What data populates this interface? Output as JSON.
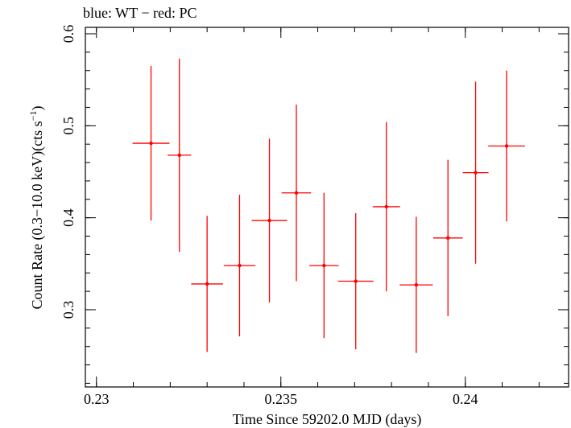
{
  "header": {
    "legend_text": "blue: WT − red: PC"
  },
  "chart_data": {
    "type": "scatter",
    "title": "",
    "xlabel": "Time Since 59202.0 MJD (days)",
    "ylabel_main": "Count Rate (0.3−10.0 keV)(cts s",
    "ylabel_sup": "−1",
    "ylabel_close": ")",
    "xlim": [
      0.2297,
      0.2428
    ],
    "ylim": [
      0.216,
      0.607
    ],
    "x_ticks": [
      0.23,
      0.235,
      0.24
    ],
    "x_tick_labels": [
      "0.23",
      "0.235",
      "0.24"
    ],
    "y_ticks": [
      0.3,
      0.4,
      0.5,
      0.6
    ],
    "y_tick_labels": [
      "0.3",
      "0.4",
      "0.5",
      "0.6"
    ],
    "x_minor_step": 0.001,
    "y_minor_step": 0.02,
    "grid": false,
    "series": [
      {
        "color": "#ff0000",
        "points": [
          {
            "x": 0.23148,
            "xerr": 0.0005,
            "y": 0.481,
            "yerr_low": 0.084,
            "yerr_high": 0.084
          },
          {
            "x": 0.23225,
            "xerr": 0.00032,
            "y": 0.468,
            "yerr_low": 0.105,
            "yerr_high": 0.105
          },
          {
            "x": 0.233,
            "xerr": 0.00043,
            "y": 0.328,
            "yerr_low": 0.074,
            "yerr_high": 0.074
          },
          {
            "x": 0.23388,
            "xerr": 0.00043,
            "y": 0.348,
            "yerr_low": 0.077,
            "yerr_high": 0.077
          },
          {
            "x": 0.23469,
            "xerr": 0.00048,
            "y": 0.397,
            "yerr_low": 0.089,
            "yerr_high": 0.089
          },
          {
            "x": 0.23542,
            "xerr": 0.0004,
            "y": 0.427,
            "yerr_low": 0.096,
            "yerr_high": 0.096
          },
          {
            "x": 0.23617,
            "xerr": 0.0004,
            "y": 0.348,
            "yerr_low": 0.079,
            "yerr_high": 0.079
          },
          {
            "x": 0.23703,
            "xerr": 0.00048,
            "y": 0.331,
            "yerr_low": 0.074,
            "yerr_high": 0.074
          },
          {
            "x": 0.23786,
            "xerr": 0.00037,
            "y": 0.412,
            "yerr_low": 0.092,
            "yerr_high": 0.092
          },
          {
            "x": 0.23867,
            "xerr": 0.00045,
            "y": 0.327,
            "yerr_low": 0.074,
            "yerr_high": 0.074
          },
          {
            "x": 0.23953,
            "xerr": 0.0004,
            "y": 0.378,
            "yerr_low": 0.085,
            "yerr_high": 0.085
          },
          {
            "x": 0.24028,
            "xerr": 0.00035,
            "y": 0.449,
            "yerr_low": 0.099,
            "yerr_high": 0.099
          },
          {
            "x": 0.24112,
            "xerr": 0.0005,
            "y": 0.478,
            "yerr_low": 0.082,
            "yerr_high": 0.082
          }
        ]
      }
    ]
  }
}
